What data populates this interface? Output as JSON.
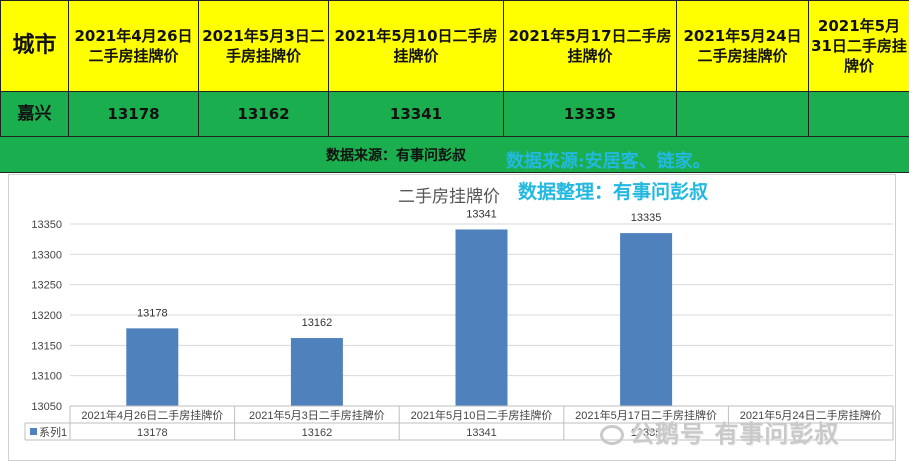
{
  "table": {
    "city_header": "城市",
    "date_headers": [
      "2021年4月26日二手房挂牌价",
      "2021年5月3日二手房挂牌价",
      "2021年5月10日二手房挂牌价",
      "2021年5月17日二手房挂牌价",
      "2021年5月24日二手房挂牌价",
      "2021年5月31日二手房挂牌价"
    ],
    "city": "嘉兴",
    "values": [
      "13178",
      "13162",
      "13341",
      "13335",
      "",
      ""
    ]
  },
  "source_bar": {
    "text": "数据来源：有事问彭叔"
  },
  "overlays": {
    "source": "数据来源:安居客、链家。",
    "compiled": "数据整理：有事问彭叔"
  },
  "chart_data": {
    "type": "bar",
    "title": "二手房挂牌价",
    "categories": [
      "2021年4月26日二手房挂牌价",
      "2021年5月3日二手房挂牌价",
      "2021年5月10日二手房挂牌价",
      "2021年5月17日二手房挂牌价",
      "2021年5月24日二手房挂牌价"
    ],
    "series": [
      {
        "name": "系列1",
        "values": [
          13178,
          13162,
          13341,
          13335,
          null
        ]
      }
    ],
    "ylim": [
      13050,
      13350
    ],
    "yticks": [
      13050,
      13100,
      13150,
      13200,
      13250,
      13300,
      13350
    ],
    "grid": true,
    "legend": "data-table",
    "bar_color": "#4f81bd"
  },
  "watermark": "公鹅号 有事问彭叔"
}
